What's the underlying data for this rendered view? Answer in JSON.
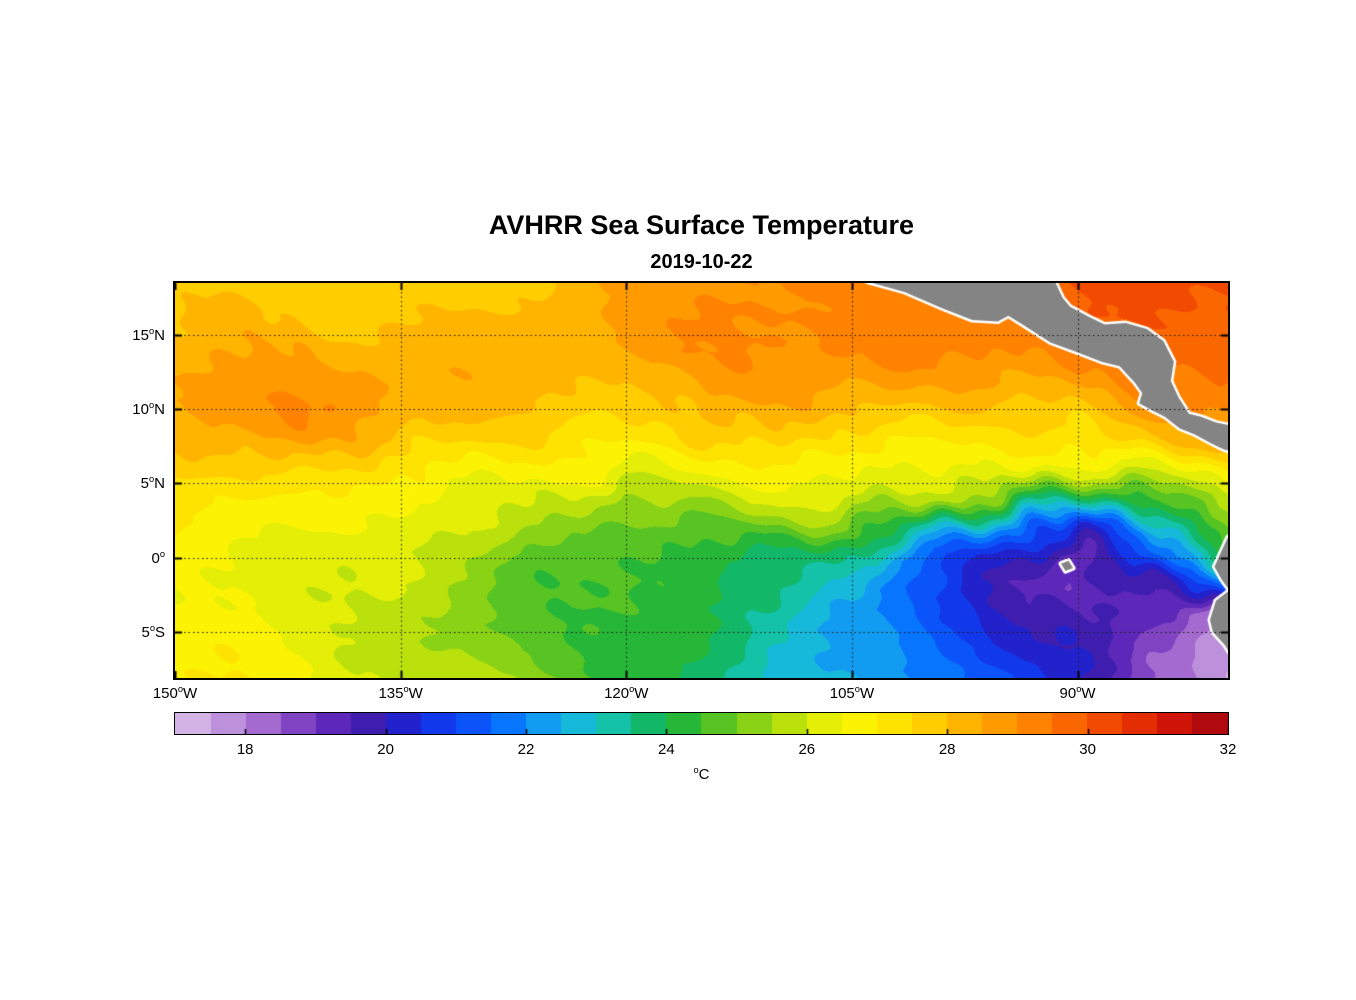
{
  "figure": {
    "title": "AVHRR Sea Surface Temperature",
    "subtitle": "2019-10-22"
  },
  "chart_data": {
    "type": "heatmap",
    "title": "AVHRR Sea Surface Temperature",
    "subtitle": "2019-10-22",
    "variable": "sea surface temperature",
    "units_label": {
      "sup": "o",
      "main": "C"
    },
    "lon_range": [
      -150,
      -80
    ],
    "lat_range": [
      -8.1,
      18.5
    ],
    "xticks": [
      {
        "num": "150",
        "sup": "o",
        "dir": "W",
        "lon": -150
      },
      {
        "num": "135",
        "sup": "o",
        "dir": "W",
        "lon": -135
      },
      {
        "num": "120",
        "sup": "o",
        "dir": "W",
        "lon": -120
      },
      {
        "num": "105",
        "sup": "o",
        "dir": "W",
        "lon": -105
      },
      {
        "num": "90",
        "sup": "o",
        "dir": "W",
        "lon": -90
      }
    ],
    "yticks": [
      {
        "num": "15",
        "sup": "o",
        "dir": "N",
        "lat": 15
      },
      {
        "num": "10",
        "sup": "o",
        "dir": "N",
        "lat": 10
      },
      {
        "num": "5",
        "sup": "o",
        "dir": "N",
        "lat": 5
      },
      {
        "num": "0",
        "sup": "o",
        "dir": "",
        "lat": 0
      },
      {
        "num": "5",
        "sup": "o",
        "dir": "S",
        "lat": -5
      }
    ],
    "grid_lons": [
      -135,
      -120,
      -105,
      -90
    ],
    "grid_lats": [
      15,
      10,
      5,
      0,
      -5
    ],
    "lons": [
      -150,
      -145,
      -140,
      -135,
      -130,
      -125,
      -120,
      -115,
      -110,
      -105,
      -100,
      -95,
      -90,
      -85,
      -80
    ],
    "lats": [
      18,
      16,
      14,
      12,
      10,
      8,
      6,
      4,
      2,
      0,
      -2,
      -4,
      -6,
      -8
    ],
    "sst_c": [
      [
        27.6,
        27.7,
        27.8,
        27.8,
        27.9,
        28.1,
        28.4,
        28.8,
        29.1,
        29.2,
        29.2,
        29.4,
        29.8,
        30.1,
        30.3
      ],
      [
        27.9,
        28.0,
        28.1,
        28.0,
        28.0,
        28.2,
        28.6,
        29.0,
        29.3,
        29.3,
        29.1,
        29.3,
        29.7,
        30.0,
        30.2
      ],
      [
        28.3,
        28.5,
        28.5,
        28.3,
        28.1,
        28.2,
        28.6,
        29.0,
        29.2,
        29.1,
        28.9,
        29.1,
        29.4,
        29.7,
        29.9
      ],
      [
        28.6,
        28.9,
        28.8,
        28.5,
        28.2,
        28.1,
        28.3,
        28.6,
        28.8,
        28.7,
        28.5,
        28.6,
        28.9,
        29.2,
        29.5
      ],
      [
        28.8,
        29.0,
        28.8,
        28.4,
        28.1,
        27.9,
        27.9,
        28.1,
        28.2,
        28.1,
        27.9,
        27.9,
        28.1,
        28.5,
        28.9
      ],
      [
        28.4,
        28.5,
        28.3,
        28.0,
        27.7,
        27.4,
        27.2,
        27.4,
        27.5,
        27.4,
        27.2,
        27.2,
        27.3,
        27.8,
        28.3
      ],
      [
        27.6,
        27.6,
        27.4,
        27.2,
        27.0,
        26.7,
        26.3,
        26.6,
        26.8,
        26.8,
        26.6,
        26.4,
        26.2,
        26.5,
        27.0
      ],
      [
        27.1,
        27.0,
        26.9,
        26.7,
        26.4,
        25.8,
        25.2,
        25.9,
        26.3,
        26.2,
        25.8,
        24.8,
        23.5,
        24.5,
        26.0
      ],
      [
        26.9,
        26.8,
        26.6,
        26.4,
        26.0,
        25.2,
        24.7,
        25.0,
        25.2,
        24.7,
        23.4,
        21.8,
        20.4,
        22.3,
        25.0
      ],
      [
        26.6,
        26.5,
        26.3,
        25.9,
        25.3,
        24.7,
        24.5,
        24.4,
        23.9,
        23.0,
        21.6,
        20.2,
        19.1,
        21.2,
        24.2
      ],
      [
        26.5,
        26.4,
        26.1,
        25.8,
        25.2,
        24.8,
        24.5,
        24.2,
        23.5,
        22.5,
        21.2,
        19.8,
        19.0,
        19.6,
        21.8
      ],
      [
        26.6,
        26.4,
        26.1,
        25.6,
        25.1,
        24.8,
        24.4,
        24.0,
        23.2,
        22.3,
        21.3,
        20.3,
        19.5,
        18.8,
        18.2
      ],
      [
        26.8,
        26.6,
        26.2,
        25.8,
        25.3,
        24.8,
        24.3,
        23.8,
        23.2,
        22.5,
        21.5,
        20.6,
        19.8,
        18.4,
        17.8
      ],
      [
        27.0,
        26.8,
        26.5,
        26.1,
        25.6,
        25.0,
        24.3,
        23.6,
        23.0,
        22.6,
        21.8,
        21.0,
        20.3,
        18.6,
        17.4
      ]
    ],
    "colorbar_ticks": [
      18,
      20,
      22,
      24,
      26,
      28,
      30,
      32
    ],
    "colormap": {
      "min": 17,
      "max": 32,
      "band_step": 0.5,
      "stops": [
        [
          17.0,
          "#ddc3ea"
        ],
        [
          17.6,
          "#c49be0"
        ],
        [
          18.2,
          "#a86ed1"
        ],
        [
          18.8,
          "#7d3fc1"
        ],
        [
          19.3,
          "#5a25b8"
        ],
        [
          19.8,
          "#3c1dae"
        ],
        [
          20.2,
          "#2420c8"
        ],
        [
          20.6,
          "#1530e8"
        ],
        [
          21.2,
          "#0b50f8"
        ],
        [
          21.8,
          "#0878ff"
        ],
        [
          22.3,
          "#12a0f0"
        ],
        [
          22.8,
          "#18bcd8"
        ],
        [
          23.2,
          "#14c4ae"
        ],
        [
          23.6,
          "#10b97c"
        ],
        [
          24.0,
          "#15b349"
        ],
        [
          24.4,
          "#2fba2f"
        ],
        [
          24.8,
          "#5ec621"
        ],
        [
          25.3,
          "#8fd414"
        ],
        [
          25.8,
          "#bfe30b"
        ],
        [
          26.3,
          "#e8ef06"
        ],
        [
          26.8,
          "#fdf303"
        ],
        [
          27.2,
          "#ffe500"
        ],
        [
          27.7,
          "#ffcf00"
        ],
        [
          28.2,
          "#ffb600"
        ],
        [
          28.7,
          "#ff9d00"
        ],
        [
          29.2,
          "#ff8400"
        ],
        [
          29.7,
          "#fb6a00"
        ],
        [
          30.2,
          "#f34d00"
        ],
        [
          30.7,
          "#e63000"
        ],
        [
          31.2,
          "#d11607"
        ],
        [
          31.7,
          "#b30a0e"
        ],
        [
          32.0,
          "#9e0410"
        ]
      ]
    },
    "land_color": "#848484",
    "coast_halo_color": "#ffffff",
    "grid_line_color": "#1a1a1a",
    "land_polygons": {
      "central_america": [
        [
          -104.0,
          18.6
        ],
        [
          -101.5,
          17.9
        ],
        [
          -99.0,
          16.8
        ],
        [
          -97.0,
          16.0
        ],
        [
          -95.3,
          15.9
        ],
        [
          -94.6,
          16.3
        ],
        [
          -93.5,
          15.6
        ],
        [
          -91.8,
          14.5
        ],
        [
          -90.2,
          13.9
        ],
        [
          -88.4,
          13.2
        ],
        [
          -87.2,
          12.9
        ],
        [
          -86.2,
          11.8
        ],
        [
          -85.7,
          11.1
        ],
        [
          -85.9,
          10.4
        ],
        [
          -85.0,
          9.9
        ],
        [
          -84.2,
          9.5
        ],
        [
          -83.2,
          8.7
        ],
        [
          -82.2,
          8.3
        ],
        [
          -81.1,
          7.7
        ],
        [
          -80.3,
          7.3
        ],
        [
          -79.6,
          7.1
        ],
        [
          -79.3,
          8.8
        ],
        [
          -80.8,
          9.1
        ],
        [
          -81.8,
          9.5
        ],
        [
          -82.6,
          9.7
        ],
        [
          -83.3,
          10.8
        ],
        [
          -83.8,
          11.9
        ],
        [
          -83.6,
          13.2
        ],
        [
          -84.3,
          14.6
        ],
        [
          -85.4,
          15.4
        ],
        [
          -86.8,
          15.8
        ],
        [
          -88.2,
          15.7
        ],
        [
          -89.2,
          16.2
        ],
        [
          -90.5,
          16.9
        ],
        [
          -91.0,
          17.5
        ],
        [
          -91.5,
          18.6
        ]
      ],
      "south_america": [
        [
          -80.0,
          1.4
        ],
        [
          -80.5,
          0.3
        ],
        [
          -80.9,
          -0.6
        ],
        [
          -80.4,
          -1.5
        ],
        [
          -79.9,
          -2.2
        ],
        [
          -80.8,
          -2.9
        ],
        [
          -81.2,
          -4.2
        ],
        [
          -81.0,
          -5.0
        ],
        [
          -80.2,
          -5.9
        ],
        [
          -79.6,
          -6.9
        ],
        [
          -79.0,
          -8.2
        ],
        [
          -76.5,
          -8.6
        ],
        [
          -76.5,
          1.4
        ]
      ],
      "galapagos": [
        [
          -91.1,
          -0.4
        ],
        [
          -90.6,
          -0.2
        ],
        [
          -90.3,
          -0.7
        ],
        [
          -90.8,
          -0.9
        ]
      ]
    }
  }
}
